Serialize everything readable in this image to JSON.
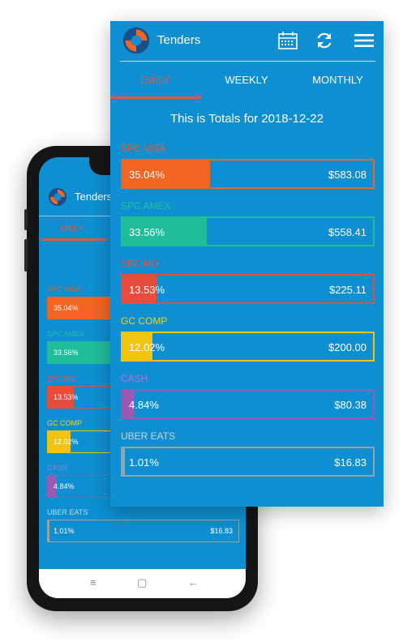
{
  "app": {
    "title": "Tenders",
    "tabs": [
      {
        "label": "DAILY",
        "active": true
      },
      {
        "label": "WEEKLY",
        "active": false
      },
      {
        "label": "MONTHLY",
        "active": false
      }
    ],
    "heading": "This is Totals for 2018-12-22",
    "icons": [
      "calendar-icon",
      "refresh-icon",
      "menu-icon"
    ],
    "colors": {
      "background": "#0d8fd1",
      "active_tab": "#e8573a"
    }
  },
  "tenders": [
    {
      "name": "SPC VISA",
      "percent_label": "35.04%",
      "percent": 35.04,
      "amount": "$583.08",
      "color": "#f26522",
      "label_color": "#ef5a2a"
    },
    {
      "name": "SPC AMEX",
      "percent_label": "33.56%",
      "percent": 33.56,
      "amount": "$558.41",
      "color": "#1fbd9a",
      "label_color": "#25c2a0"
    },
    {
      "name": "SPC MC",
      "percent_label": "13.53%",
      "percent": 13.53,
      "amount": "$225.11",
      "color": "#e74c3c",
      "label_color": "#ea4f3d"
    },
    {
      "name": "GC COMP",
      "percent_label": "12.02%",
      "percent": 12.02,
      "amount": "$200.00",
      "color": "#f1c40f",
      "label_color": "#f5d01a"
    },
    {
      "name": "CASH",
      "percent_label": "4.84%",
      "percent": 4.84,
      "amount": "$80.38",
      "color": "#9b59b6",
      "label_color": "#b56fd6"
    },
    {
      "name": "UBER EATS",
      "percent_label": "1.01%",
      "percent": 1.01,
      "amount": "$16.83",
      "color": "#95a5a6",
      "label_color": "#c9d6dc"
    }
  ],
  "phone": {
    "title": "Tenders",
    "active_tab": "DAILY",
    "heading_partial": "This is",
    "nav_icons": [
      "recent-apps-icon",
      "home-icon",
      "back-icon"
    ]
  }
}
